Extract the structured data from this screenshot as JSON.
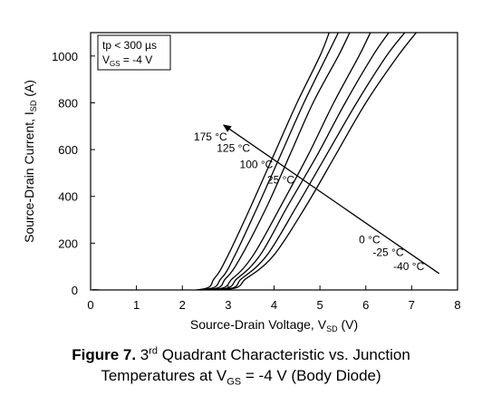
{
  "chart_data": {
    "type": "line",
    "xlabel": "Source-Drain Voltage, V",
    "xlabel_sub": "SD",
    "xlabel_unit": " (V)",
    "ylabel": "Source-Drain Current, I",
    "ylabel_sub": "SD",
    "ylabel_unit": " (A)",
    "xlim": [
      0,
      8
    ],
    "ylim": [
      0,
      1100
    ],
    "x_ticks": [
      "0",
      "1",
      "2",
      "3",
      "4",
      "5",
      "6",
      "7",
      "8"
    ],
    "y_ticks": [
      "0",
      "200",
      "400",
      "600",
      "800",
      "1000"
    ],
    "grid": false,
    "legend_box": {
      "line1": "tp < 300 µs",
      "line2_main": "V",
      "line2_sub": "GS",
      "line2_rest": " = -4 V",
      "placement": "top-left"
    },
    "series": [
      {
        "label": "175 °C",
        "values": [
          [
            2.3,
            0
          ],
          [
            2.7,
            50
          ],
          [
            3.0,
            150
          ],
          [
            3.5,
            360
          ],
          [
            4.0,
            580
          ],
          [
            4.5,
            800
          ],
          [
            5.0,
            1000
          ],
          [
            5.2,
            1100
          ]
        ]
      },
      {
        "label": "125 °C",
        "values": [
          [
            2.4,
            0
          ],
          [
            2.85,
            50
          ],
          [
            3.15,
            150
          ],
          [
            3.65,
            360
          ],
          [
            4.15,
            580
          ],
          [
            4.65,
            800
          ],
          [
            5.15,
            1000
          ],
          [
            5.4,
            1100
          ]
        ]
      },
      {
        "label": "100 °C",
        "values": [
          [
            2.5,
            0
          ],
          [
            2.95,
            50
          ],
          [
            3.3,
            150
          ],
          [
            3.85,
            360
          ],
          [
            4.35,
            580
          ],
          [
            4.85,
            800
          ],
          [
            5.4,
            1000
          ],
          [
            5.65,
            1100
          ]
        ]
      },
      {
        "label": "25 °C",
        "values": [
          [
            2.6,
            0
          ],
          [
            3.1,
            50
          ],
          [
            3.55,
            150
          ],
          [
            4.15,
            360
          ],
          [
            4.75,
            580
          ],
          [
            5.3,
            800
          ],
          [
            5.85,
            1000
          ],
          [
            6.1,
            1100
          ]
        ]
      },
      {
        "label": "0 °C",
        "values": [
          [
            2.7,
            0
          ],
          [
            3.2,
            50
          ],
          [
            3.7,
            150
          ],
          [
            4.3,
            360
          ],
          [
            4.95,
            580
          ],
          [
            5.55,
            800
          ],
          [
            6.15,
            1000
          ],
          [
            6.5,
            1100
          ]
        ]
      },
      {
        "label": "-25 °C",
        "values": [
          [
            2.8,
            0
          ],
          [
            3.3,
            50
          ],
          [
            3.85,
            150
          ],
          [
            4.5,
            360
          ],
          [
            5.15,
            580
          ],
          [
            5.8,
            800
          ],
          [
            6.45,
            1000
          ],
          [
            6.85,
            1100
          ]
        ]
      },
      {
        "label": "-40 °C",
        "values": [
          [
            2.85,
            0
          ],
          [
            3.4,
            50
          ],
          [
            4.0,
            150
          ],
          [
            4.7,
            360
          ],
          [
            5.35,
            580
          ],
          [
            6.0,
            800
          ],
          [
            6.7,
            1000
          ],
          [
            7.1,
            1100
          ]
        ]
      }
    ],
    "annotation_arrow": {
      "from": [
        7.6,
        70
      ],
      "to": [
        2.9,
        705
      ]
    },
    "temperature_labels": [
      {
        "text": "175 °C",
        "at": [
          2.25,
          640
        ]
      },
      {
        "text": "125 °C",
        "at": [
          2.75,
          590
        ]
      },
      {
        "text": "100 °C",
        "at": [
          3.25,
          520
        ]
      },
      {
        "text": "25 °C",
        "at": [
          3.85,
          455
        ]
      },
      {
        "text": "0 °C",
        "at": [
          5.85,
          200
        ]
      },
      {
        "text": "-25 °C",
        "at": [
          6.15,
          145
        ]
      },
      {
        "text": "-40 °C",
        "at": [
          6.6,
          85
        ]
      }
    ]
  },
  "caption": {
    "fig_label": "Figure 7.",
    "line1_num": " 3",
    "line1_sup": "rd",
    "line1_rest": " Quadrant Characteristic vs. Junction",
    "line2_start": "Temperatures at V",
    "line2_sub": "GS",
    "line2_rest": " = -4 V (Body Diode)"
  }
}
